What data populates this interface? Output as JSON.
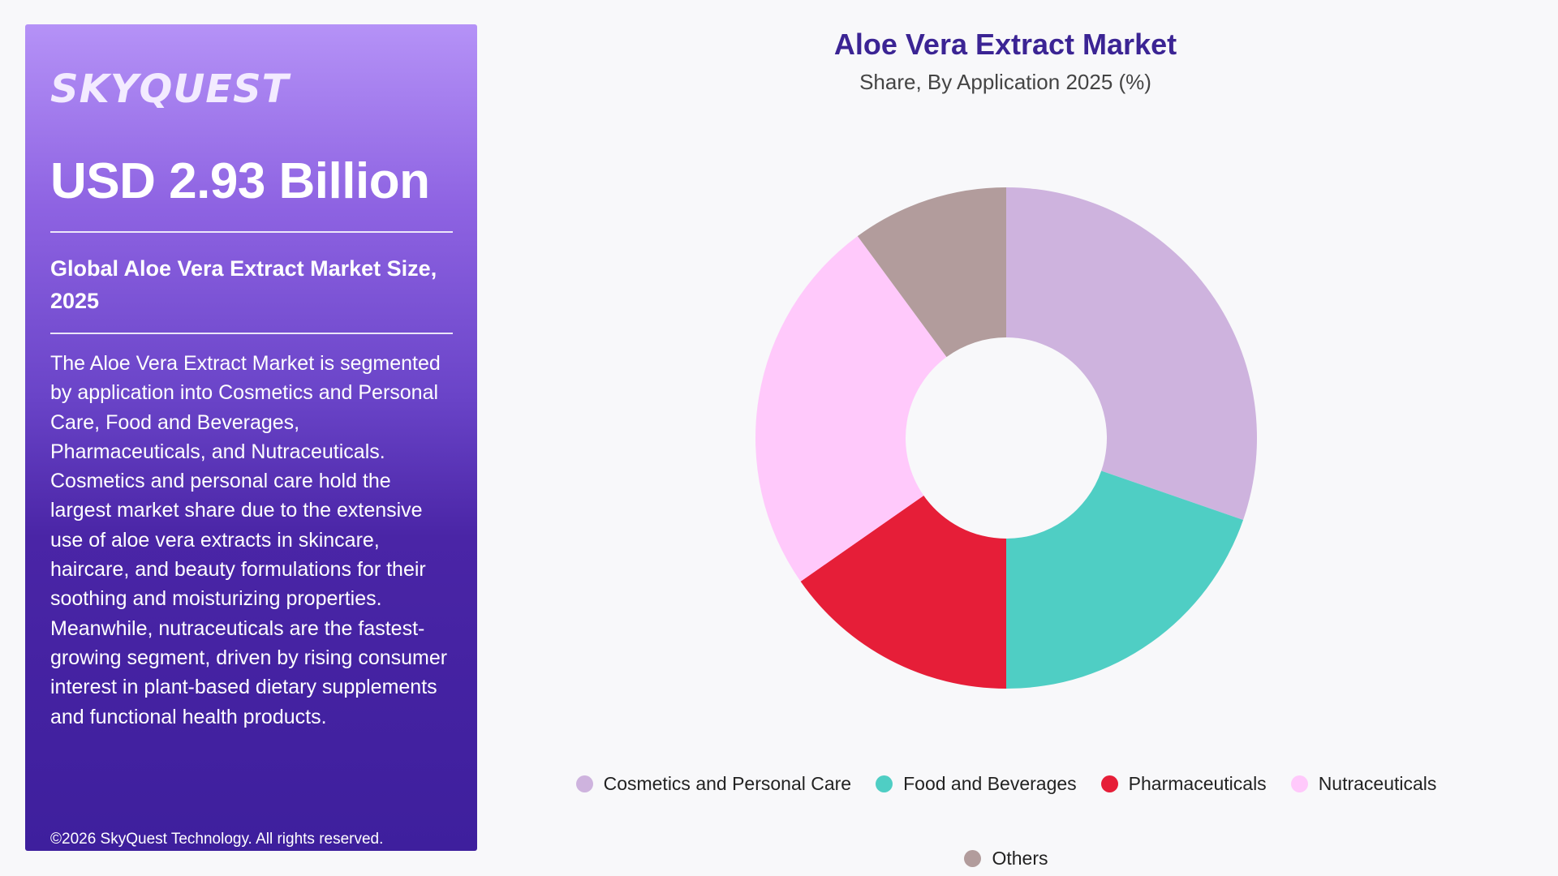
{
  "panel": {
    "logo": "SKYQUEST",
    "value": "USD 2.93 Billion",
    "market_size": "Global Aloe Vera Extract Market Size, 2025",
    "description": "The Aloe Vera Extract Market is segmented by application into Cosmetics and Personal Care, Food and Beverages, Pharmaceuticals, and Nutraceuticals. Cosmetics and personal care hold the largest market share due to the extensive use of aloe vera extracts in skincare, haircare, and beauty formulations for their soothing and moisturizing properties. Meanwhile, nutraceuticals are the fastest-growing segment, driven by rising consumer interest in plant-based dietary supplements and functional health products.",
    "copyright": "©2026 SkyQuest Technology. All rights reserved."
  },
  "chart_data": {
    "type": "donut",
    "title": "Aloe Vera Extract Market",
    "subtitle": "Share, By Application 2025 (%)",
    "legend_position": "bottom",
    "categories": [
      "Cosmetics and Personal Care",
      "Food and Beverages",
      "Pharmaceuticals",
      "Nutraceuticals",
      "Others"
    ],
    "values": [
      30.3,
      19.7,
      15.3,
      24.6,
      10.1
    ],
    "colors": [
      "#ceb3de",
      "#4fcec4",
      "#e61e38",
      "#ffc9fb",
      "#b29c9c"
    ]
  }
}
